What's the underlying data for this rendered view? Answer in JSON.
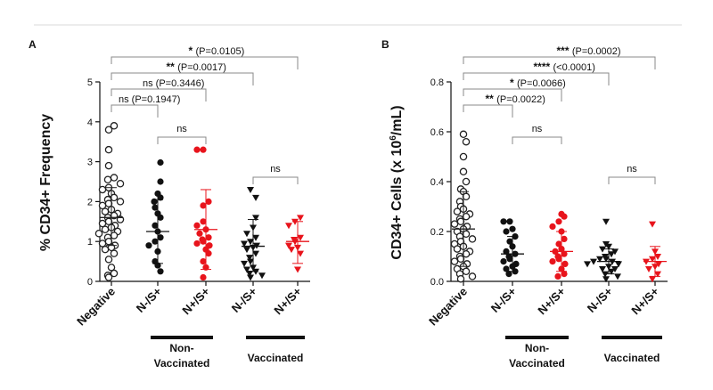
{
  "chart_data": [
    {
      "type": "scatter",
      "panel": "A",
      "ylabel": "% CD34+ Frequency",
      "ylim": [
        0,
        5
      ],
      "yticks": [
        "0",
        "1",
        "2",
        "3",
        "4",
        "5"
      ],
      "categories": [
        "Negative",
        "N-/S+",
        "N+/S+",
        "N-/S+",
        "N+/S+"
      ],
      "groups": [
        {
          "label": "Non-\nVaccinated",
          "categories": [
            1,
            2
          ]
        },
        {
          "label": "Vaccinated",
          "categories": [
            3,
            4
          ]
        }
      ],
      "series": [
        {
          "category": "Negative",
          "marker": "circle-open",
          "color": "#222222",
          "mean": 1.6,
          "sd_low": 0.9,
          "sd_high": 2.35,
          "values": [
            3.9,
            3.8,
            3.3,
            2.9,
            2.6,
            2.55,
            2.45,
            2.35,
            2.3,
            2.2,
            2.1,
            2.05,
            2.0,
            1.95,
            1.9,
            1.8,
            1.75,
            1.7,
            1.65,
            1.6,
            1.55,
            1.5,
            1.45,
            1.4,
            1.35,
            1.3,
            1.25,
            1.2,
            1.15,
            1.1,
            1.0,
            0.95,
            0.9,
            0.85,
            0.8,
            0.7,
            0.55,
            0.35,
            0.2,
            0.15,
            0.1
          ]
        },
        {
          "category": "N-/S+",
          "marker": "circle-filled",
          "color": "#111111",
          "mean": 1.25,
          "sd_low": 0.45,
          "sd_high": 2.05,
          "values": [
            2.98,
            2.5,
            2.2,
            2.1,
            2.0,
            1.85,
            1.7,
            1.6,
            1.4,
            1.25,
            1.1,
            1.0,
            0.9,
            0.75,
            0.5,
            0.4,
            0.25
          ]
        },
        {
          "category": "N+/S+",
          "marker": "circle-filled",
          "color": "#e8141c",
          "mean": 1.3,
          "sd_low": 0.3,
          "sd_high": 2.3,
          "values": [
            3.3,
            3.3,
            2.0,
            1.9,
            1.5,
            1.4,
            1.3,
            1.2,
            1.1,
            1.05,
            1.0,
            0.95,
            0.9,
            0.8,
            0.7,
            0.5,
            0.35,
            0.1
          ]
        },
        {
          "category": "N-/S+",
          "marker": "triangle-down",
          "color": "#111111",
          "mean": 0.88,
          "sd_low": 0.25,
          "sd_high": 1.55,
          "values": [
            2.3,
            2.1,
            1.6,
            1.35,
            1.2,
            1.1,
            1.0,
            0.95,
            0.9,
            0.85,
            0.8,
            0.7,
            0.6,
            0.5,
            0.45,
            0.35,
            0.3,
            0.25,
            0.2,
            0.15,
            0.1
          ]
        },
        {
          "category": "N+/S+",
          "marker": "triangle-down",
          "color": "#e8141c",
          "mean": 1.0,
          "sd_low": 0.45,
          "sd_high": 1.5,
          "values": [
            1.6,
            1.5,
            1.4,
            1.1,
            1.05,
            1.0,
            0.9,
            0.85,
            0.8,
            0.7,
            0.3
          ]
        }
      ],
      "comparisons": [
        {
          "from": 0,
          "to": 1,
          "stars": "",
          "text": "ns (P=0.1947)"
        },
        {
          "from": 0,
          "to": 2,
          "stars": "",
          "text": "ns (P=0.3446)"
        },
        {
          "from": 0,
          "to": 3,
          "stars": "**",
          "text": "(P=0.0017)"
        },
        {
          "from": 0,
          "to": 4,
          "stars": "*",
          "text": "(P=0.0105)"
        },
        {
          "from": 1,
          "to": 2,
          "stars": "",
          "text": "ns"
        },
        {
          "from": 3,
          "to": 4,
          "stars": "",
          "text": "ns"
        }
      ]
    },
    {
      "type": "scatter",
      "panel": "B",
      "ylabel_main": "CD34+ Cells (x 10",
      "ylabel_sup": "6",
      "ylabel_end": "/mL)",
      "ylim": [
        0,
        0.8
      ],
      "yticks": [
        "0.0",
        "0.2",
        "0.4",
        "0.6",
        "0.8"
      ],
      "categories": [
        "Negative",
        "N-/S+",
        "N+/S+",
        "N-/S+",
        "N+/S+"
      ],
      "groups": [
        {
          "label": "Non-\nVaccinated",
          "categories": [
            1,
            2
          ]
        },
        {
          "label": "Vaccinated",
          "categories": [
            3,
            4
          ]
        }
      ],
      "series": [
        {
          "category": "Negative",
          "marker": "circle-open",
          "color": "#222222",
          "mean": 0.21,
          "sd_low": 0.06,
          "sd_high": 0.36,
          "values": [
            0.59,
            0.56,
            0.5,
            0.44,
            0.4,
            0.37,
            0.36,
            0.34,
            0.32,
            0.3,
            0.29,
            0.28,
            0.27,
            0.26,
            0.25,
            0.24,
            0.23,
            0.22,
            0.21,
            0.2,
            0.19,
            0.18,
            0.17,
            0.16,
            0.15,
            0.14,
            0.13,
            0.12,
            0.11,
            0.1,
            0.09,
            0.08,
            0.07,
            0.06,
            0.05,
            0.04,
            0.03,
            0.02,
            0.01
          ]
        },
        {
          "category": "N-/S+",
          "marker": "circle-filled",
          "color": "#111111",
          "mean": 0.11,
          "sd_low": 0.04,
          "sd_high": 0.18,
          "values": [
            0.24,
            0.24,
            0.21,
            0.2,
            0.18,
            0.16,
            0.14,
            0.12,
            0.11,
            0.1,
            0.09,
            0.08,
            0.07,
            0.06,
            0.05,
            0.04,
            0.03
          ]
        },
        {
          "category": "N+/S+",
          "marker": "circle-filled",
          "color": "#e8141c",
          "mean": 0.12,
          "sd_low": 0.04,
          "sd_high": 0.2,
          "values": [
            0.27,
            0.26,
            0.24,
            0.22,
            0.2,
            0.17,
            0.15,
            0.13,
            0.12,
            0.11,
            0.1,
            0.09,
            0.08,
            0.07,
            0.05,
            0.03,
            0.02
          ]
        },
        {
          "category": "N-/S+",
          "marker": "triangle-down",
          "color": "#111111",
          "mean": 0.08,
          "sd_low": 0.03,
          "sd_high": 0.13,
          "values": [
            0.24,
            0.15,
            0.14,
            0.13,
            0.12,
            0.11,
            0.1,
            0.09,
            0.09,
            0.08,
            0.08,
            0.07,
            0.07,
            0.06,
            0.05,
            0.05,
            0.04,
            0.03,
            0.02,
            0.01
          ]
        },
        {
          "category": "N+/S+",
          "marker": "triangle-down",
          "color": "#e8141c",
          "mean": 0.08,
          "sd_low": 0.02,
          "sd_high": 0.14,
          "values": [
            0.23,
            0.12,
            0.1,
            0.09,
            0.08,
            0.07,
            0.06,
            0.05,
            0.03,
            0.01
          ]
        }
      ],
      "comparisons": [
        {
          "from": 0,
          "to": 1,
          "stars": "**",
          "text": "(P=0.0022)"
        },
        {
          "from": 0,
          "to": 2,
          "stars": "*",
          "text": "(P=0.0066)"
        },
        {
          "from": 0,
          "to": 3,
          "stars": "****",
          "text": "(<0.0001)"
        },
        {
          "from": 0,
          "to": 4,
          "stars": "***",
          "text": "(P=0.0002)"
        },
        {
          "from": 1,
          "to": 2,
          "stars": "",
          "text": "ns"
        },
        {
          "from": 3,
          "to": 4,
          "stars": "",
          "text": "ns"
        }
      ]
    }
  ]
}
